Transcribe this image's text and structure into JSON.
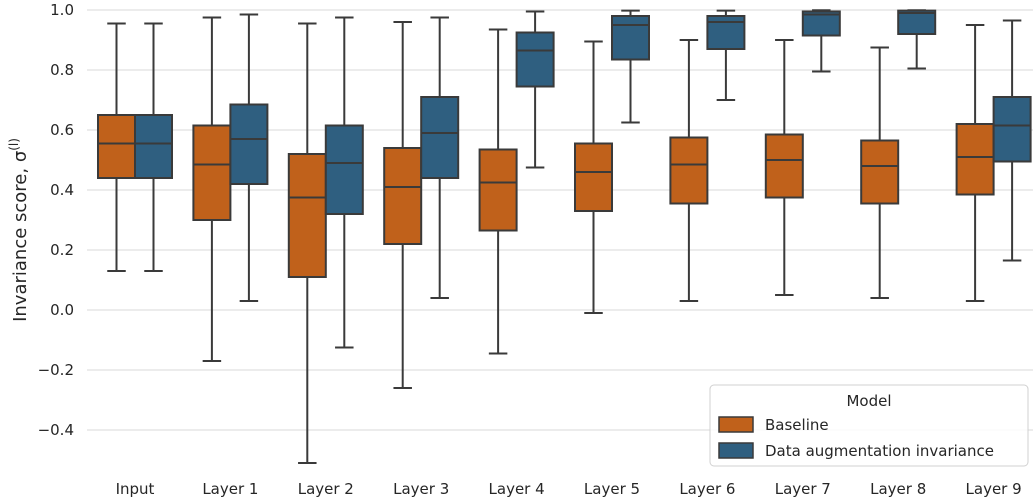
{
  "chart_data": {
    "type": "box",
    "ylabel": "Invariance score, σ",
    "ylabel_superscript": "(l)",
    "ylim": [
      -0.5,
      1.0
    ],
    "yticks": [
      -0.4,
      -0.2,
      0.0,
      0.2,
      0.4,
      0.6,
      0.8,
      1.0
    ],
    "ytick_labels": [
      "−0.4",
      "−0.2",
      "0.0",
      "0.2",
      "0.4",
      "0.6",
      "0.8",
      "1.0"
    ],
    "grid": true,
    "categories": [
      "Input",
      "Layer 1",
      "Layer 2",
      "Layer 3",
      "Layer 4",
      "Layer 5",
      "Layer 6",
      "Layer 7",
      "Layer 8",
      "Layer 9"
    ],
    "legend": {
      "title": "Model",
      "placement": "bottom-right"
    },
    "series": [
      {
        "name": "Baseline",
        "color": "#c0611b",
        "boxes": [
          {
            "low": 0.13,
            "q1": 0.44,
            "median": 0.555,
            "q3": 0.65,
            "high": 0.955
          },
          {
            "low": -0.17,
            "q1": 0.3,
            "median": 0.485,
            "q3": 0.615,
            "high": 0.975
          },
          {
            "low": -0.51,
            "q1": 0.11,
            "median": 0.375,
            "q3": 0.52,
            "high": 0.955
          },
          {
            "low": -0.26,
            "q1": 0.22,
            "median": 0.41,
            "q3": 0.54,
            "high": 0.96
          },
          {
            "low": -0.145,
            "q1": 0.265,
            "median": 0.425,
            "q3": 0.535,
            "high": 0.935
          },
          {
            "low": -0.01,
            "q1": 0.33,
            "median": 0.46,
            "q3": 0.555,
            "high": 0.895
          },
          {
            "low": 0.03,
            "q1": 0.355,
            "median": 0.485,
            "q3": 0.575,
            "high": 0.9
          },
          {
            "low": 0.05,
            "q1": 0.375,
            "median": 0.5,
            "q3": 0.585,
            "high": 0.9
          },
          {
            "low": 0.04,
            "q1": 0.355,
            "median": 0.48,
            "q3": 0.565,
            "high": 0.875
          },
          {
            "low": 0.03,
            "q1": 0.385,
            "median": 0.51,
            "q3": 0.62,
            "high": 0.95
          }
        ]
      },
      {
        "name": "Data augmentation invariance",
        "color": "#2f5f80",
        "boxes": [
          {
            "low": 0.13,
            "q1": 0.44,
            "median": 0.555,
            "q3": 0.65,
            "high": 0.955
          },
          {
            "low": 0.03,
            "q1": 0.42,
            "median": 0.57,
            "q3": 0.685,
            "high": 0.985
          },
          {
            "low": -0.125,
            "q1": 0.32,
            "median": 0.49,
            "q3": 0.615,
            "high": 0.975
          },
          {
            "low": 0.04,
            "q1": 0.44,
            "median": 0.59,
            "q3": 0.71,
            "high": 0.975
          },
          {
            "low": 0.475,
            "q1": 0.745,
            "median": 0.865,
            "q3": 0.925,
            "high": 0.995
          },
          {
            "low": 0.625,
            "q1": 0.835,
            "median": 0.95,
            "q3": 0.98,
            "high": 0.998
          },
          {
            "low": 0.7,
            "q1": 0.87,
            "median": 0.96,
            "q3": 0.98,
            "high": 0.998
          },
          {
            "low": 0.795,
            "q1": 0.915,
            "median": 0.985,
            "q3": 0.995,
            "high": 0.999
          },
          {
            "low": 0.805,
            "q1": 0.92,
            "median": 0.99,
            "q3": 0.998,
            "high": 0.999
          },
          {
            "low": 0.165,
            "q1": 0.495,
            "median": 0.615,
            "q3": 0.71,
            "high": 0.965
          }
        ]
      }
    ]
  }
}
